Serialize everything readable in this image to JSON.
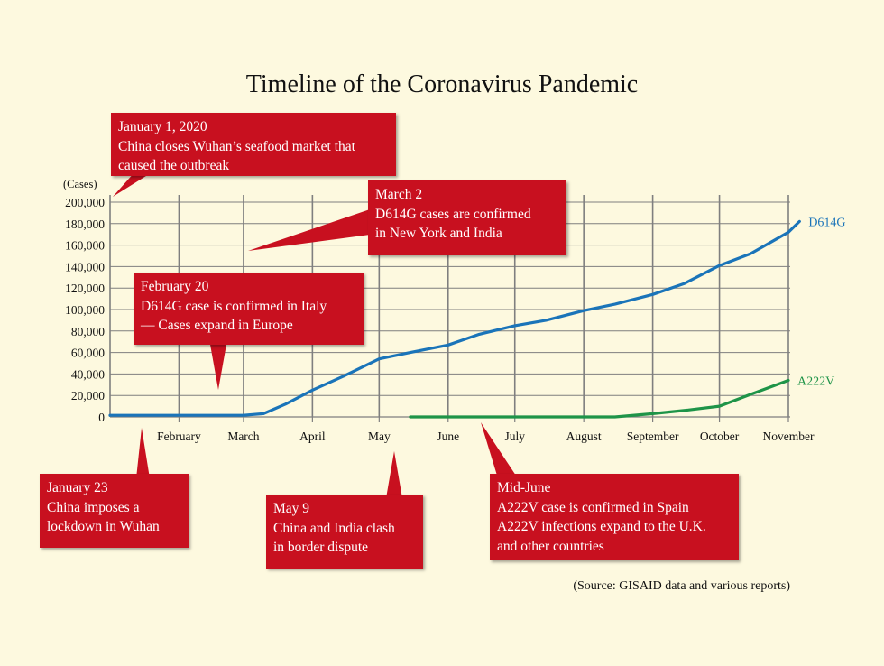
{
  "title": "Timeline of the Coronavirus Pandemic",
  "source": "(Source: GISAID data and various reports)",
  "colors": {
    "callout": "#c8101f",
    "d614g": "#1a74b9",
    "a222v": "#1e9448",
    "background": "#fdf9df",
    "grid": "#7f7f7f"
  },
  "callouts": {
    "jan1": [
      "January 1, 2020",
      "China closes Wuhan’s seafood market that",
      "caused the outbreak"
    ],
    "mar2": [
      "March 2",
      "D614G cases are confirmed",
      "in New York and India"
    ],
    "feb20": [
      "February 20",
      "D614G case is confirmed in Italy",
      "— Cases expand in Europe"
    ],
    "jan23": [
      "January 23",
      "China imposes a",
      "lockdown in Wuhan"
    ],
    "may9": [
      "May 9",
      "China and India clash",
      "in border dispute"
    ],
    "midjune": [
      "Mid-June",
      "A222V case is confirmed in Spain",
      "A222V infections expand to the U.K.",
      "and other countries"
    ]
  },
  "chart_data": {
    "type": "line",
    "ylabel": "(Cases)",
    "ylim": [
      0,
      200000
    ],
    "y_ticks": [
      {
        "value": 0,
        "label": "0"
      },
      {
        "value": 20000,
        "label": "20,000"
      },
      {
        "value": 40000,
        "label": "40,000"
      },
      {
        "value": 60000,
        "label": "60,000"
      },
      {
        "value": 80000,
        "label": "80,000"
      },
      {
        "value": 100000,
        "label": "100,000"
      },
      {
        "value": 120000,
        "label": "120,000"
      },
      {
        "value": 140000,
        "label": "140,000"
      },
      {
        "value": 160000,
        "label": "160,000"
      },
      {
        "value": 180000,
        "label": "180,000"
      },
      {
        "value": 200000,
        "label": "200,000"
      }
    ],
    "x_ticks": [
      "February",
      "March",
      "April",
      "May",
      "June",
      "July",
      "August",
      "September",
      "October",
      "November"
    ],
    "grid": true,
    "series": [
      {
        "name": "D614G",
        "x": [
          "2020-01-01",
          "2020-01-15",
          "2020-02-01",
          "2020-02-15",
          "2020-03-01",
          "2020-03-10",
          "2020-03-20",
          "2020-04-01",
          "2020-04-15",
          "2020-05-01",
          "2020-05-15",
          "2020-06-01",
          "2020-06-15",
          "2020-07-01",
          "2020-07-15",
          "2020-08-01",
          "2020-08-15",
          "2020-09-01",
          "2020-09-15",
          "2020-10-01",
          "2020-10-15",
          "2020-11-01",
          "2020-11-06"
        ],
        "values": [
          1500,
          1500,
          1500,
          1500,
          1500,
          3000,
          12000,
          25000,
          38000,
          54000,
          60000,
          67000,
          77000,
          85000,
          90000,
          99000,
          105000,
          114000,
          124000,
          141000,
          152000,
          172000,
          182000
        ]
      },
      {
        "name": "A222V",
        "x": [
          "2020-05-15",
          "2020-06-01",
          "2020-06-15",
          "2020-07-01",
          "2020-07-15",
          "2020-08-01",
          "2020-08-15",
          "2020-09-01",
          "2020-09-15",
          "2020-10-01",
          "2020-10-15",
          "2020-11-01"
        ],
        "values": [
          0,
          0,
          0,
          0,
          0,
          0,
          0,
          3000,
          6000,
          10000,
          21000,
          34000
        ]
      }
    ]
  }
}
